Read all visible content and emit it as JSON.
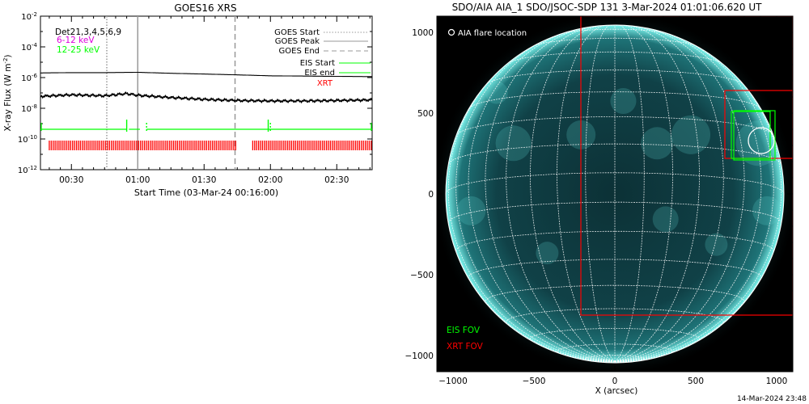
{
  "colors": {
    "eis": "#00ff00",
    "xrt": "#ff0000",
    "magenta": "#dd00dd",
    "sun_core": "#0f3b40",
    "sun_bright": "#7ff7f0",
    "background": "#ffffff"
  },
  "goes": {
    "title": "GOES16 XRS",
    "ylabel_main": "X-ray Flux (W m",
    "ylabel_sup": "-2",
    "ylabel_close": ")",
    "xlabel": "Start Time (03-Mar-24 00:16:00)",
    "det_label": "Det21,3,4,5,6,9",
    "band_1": "6-12 keV",
    "band_2": "12-25 keV",
    "y_tick_labels": [
      {
        "base": "10",
        "exp": "-2"
      },
      {
        "base": "10",
        "exp": "-4"
      },
      {
        "base": "10",
        "exp": "-6"
      },
      {
        "base": "10",
        "exp": "-8"
      },
      {
        "base": "10",
        "exp": "-10"
      },
      {
        "base": "10",
        "exp": "-12"
      }
    ],
    "legend": {
      "goes_start": "GOES Start",
      "goes_peak": "GOES Peak",
      "goes_end": "GOES End",
      "eis_start": "EIS Start",
      "eis_end": "EIS end",
      "xrt": "XRT"
    }
  },
  "aia": {
    "title": "SDO/AIA AIA_1 SDO/JSOC-SDP 131  3-Mar-2024 01:01:06.620 UT",
    "flare_label": "AIA flare location",
    "eis_fov": "EIS FOV",
    "xrt_fov": "XRT FOV",
    "xlabel": "X (arcsec)",
    "footer": "14-Mar-2024 23:48"
  },
  "chart_data": [
    {
      "type": "line",
      "title": "GOES16 XRS",
      "xlabel": "Start Time (03-Mar-24 00:16:00)",
      "ylabel": "X-ray Flux (W m^-2)",
      "y_scale": "log",
      "xlim": [
        "00:16",
        "02:46"
      ],
      "ylim": [
        1e-12,
        0.01
      ],
      "x_ticks": [
        "00:30",
        "01:00",
        "01:30",
        "02:00",
        "02:30"
      ],
      "series": [
        {
          "name": "6-12 keV",
          "x": [
            "00:16",
            "00:30",
            "00:45",
            "01:00",
            "01:15",
            "01:30",
            "01:45",
            "02:00",
            "02:15",
            "02:30",
            "02:46"
          ],
          "y": [
            2e-06,
            2.1e-06,
            2.1e-06,
            2.2e-06,
            1.9e-06,
            1.7e-06,
            1.5e-06,
            1.3e-06,
            1.25e-06,
            1.2e-06,
            1.15e-06
          ]
        },
        {
          "name": "12-25 keV",
          "x": [
            "00:16",
            "00:30",
            "00:45",
            "00:55",
            "01:00",
            "01:15",
            "01:30",
            "01:45",
            "02:00",
            "02:15",
            "02:30",
            "02:46"
          ],
          "y": [
            6e-08,
            7.5e-08,
            6.5e-08,
            9e-08,
            7e-08,
            5e-08,
            3.8e-08,
            3.2e-08,
            3e-08,
            3e-08,
            3.2e-08,
            3.5e-08
          ]
        }
      ],
      "markers": {
        "goes_start": "00:46",
        "goes_peak": "01:00",
        "goes_end": "01:44",
        "eis_start_ticks": [
          "00:55",
          "01:59"
        ],
        "eis_end_ticks": [
          "01:04",
          "02:00"
        ]
      },
      "eis_coverage": [
        [
          "00:16",
          "00:55"
        ],
        [
          "00:56",
          "01:01"
        ],
        [
          "01:04",
          "02:46"
        ]
      ],
      "xrt_coverage": [
        [
          "00:20",
          "01:45"
        ],
        [
          "01:52",
          "02:46"
        ]
      ]
    },
    {
      "type": "image",
      "title": "SDO/AIA AIA_1 SDO/JSOC-SDP 131  3-Mar-2024 01:01:06.620 UT",
      "xlabel": "X (arcsec)",
      "xlim": [
        -1100,
        1100
      ],
      "ylim": [
        -1100,
        1100
      ],
      "x_ticks": [
        -1000,
        -500,
        0,
        500,
        1000
      ],
      "y_ticks": [
        -1000,
        -500,
        0,
        500,
        1000
      ],
      "flare_location": [
        905,
        330
      ],
      "eis_fov": [
        {
          "x": [
            720,
            960
          ],
          "y": [
            220,
            510
          ]
        },
        {
          "x": [
            735,
            990
          ],
          "y": [
            210,
            515
          ]
        }
      ],
      "xrt_fov": [
        {
          "x": [
            -210,
            1100
          ],
          "y": [
            -750,
            1100
          ]
        },
        {
          "x": [
            680,
            1100
          ],
          "y": [
            220,
            640
          ]
        }
      ]
    }
  ]
}
